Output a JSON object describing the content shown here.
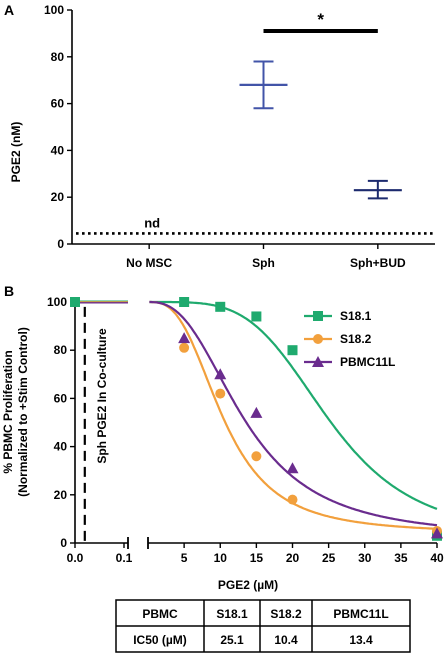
{
  "panel_labels": {
    "a": "A",
    "b": "B"
  },
  "chart_data": [
    {
      "type": "scatter",
      "panel": "A",
      "ylabel": "PGE2 (nM)",
      "ylim": [
        0,
        100
      ],
      "yticks": [
        0,
        20,
        40,
        60,
        80,
        100
      ],
      "categories": [
        "No MSC",
        "Sph",
        "Sph+BUD"
      ],
      "points": [
        {
          "category": "Sph",
          "mean": 68,
          "low": 58,
          "high": 78,
          "color": "#4254a8"
        },
        {
          "category": "Sph+BUD",
          "mean": 23,
          "low": 19.5,
          "high": 27,
          "color": "#1c2a6e"
        }
      ],
      "detection_limit": 4.5,
      "nd_label": "nd",
      "significance": {
        "label": "*",
        "from": "Sph",
        "to": "Sph+BUD",
        "y": 91
      }
    },
    {
      "type": "line",
      "panel": "B",
      "ylabel": "% PBMC Proliferation",
      "ylabel2": "(Normalized to +Stim Control)",
      "xlabel": "PGE2 (µM)",
      "ylim": [
        0,
        100
      ],
      "yticks": [
        0,
        20,
        40,
        60,
        80,
        100
      ],
      "xlim_left": [
        0,
        0.1
      ],
      "xticks_left": [
        "0.0",
        "0.1"
      ],
      "xlim_right": [
        0,
        40
      ],
      "xticks_right": [
        5,
        10,
        15,
        20,
        25,
        30,
        35,
        40
      ],
      "reference_label": "Sph PGE2 In Co-culture",
      "reference_x": 0.02,
      "series": [
        {
          "name": "S18.1",
          "color": "#1faa6e",
          "marker": "square",
          "x": [
            5,
            10,
            15,
            20,
            40
          ],
          "y": [
            100,
            98,
            94,
            80,
            3
          ],
          "ic50": 25.1,
          "hill": 4.2,
          "top": 100,
          "bottom": 2
        },
        {
          "name": "S18.2",
          "color": "#f2a03d",
          "marker": "circle",
          "x": [
            5,
            10,
            15,
            20,
            40
          ],
          "y": [
            81,
            62,
            36,
            18,
            5
          ],
          "ic50": 10.4,
          "hill": 2.9,
          "top": 100,
          "bottom": 4
        },
        {
          "name": "PBMC11L",
          "color": "#6a2c8e",
          "marker": "triangle",
          "x": [
            5,
            10,
            15,
            20,
            40
          ],
          "y": [
            85,
            70,
            54,
            31,
            4
          ],
          "ic50": 13.4,
          "hill": 2.6,
          "top": 100,
          "bottom": 2
        }
      ],
      "left_value": 100
    }
  ],
  "table": {
    "header": [
      "PBMC",
      "S18.1",
      "S18.2",
      "PBMC11L"
    ],
    "row": [
      "IC50 (µM)",
      "25.1",
      "10.4",
      "13.4"
    ]
  }
}
